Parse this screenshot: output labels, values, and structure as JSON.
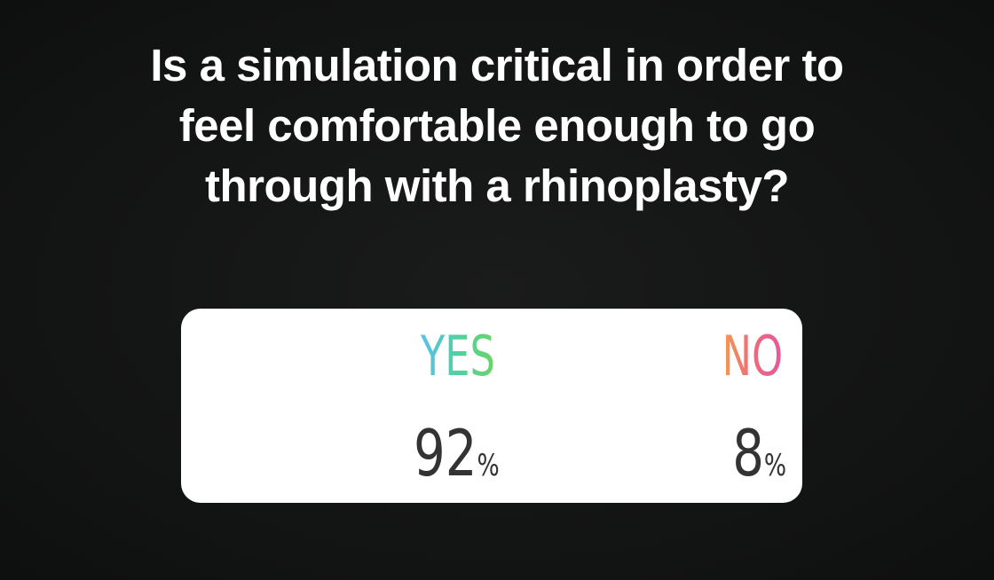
{
  "poll": {
    "question_lines": [
      "Is a simulation critical in order to",
      "feel comfortable enough to go",
      "through with a rhinoplasty?"
    ],
    "options": [
      {
        "label": "YES",
        "value": 92,
        "unit": "%"
      },
      {
        "label": "NO",
        "value": 8,
        "unit": "%"
      }
    ]
  }
}
